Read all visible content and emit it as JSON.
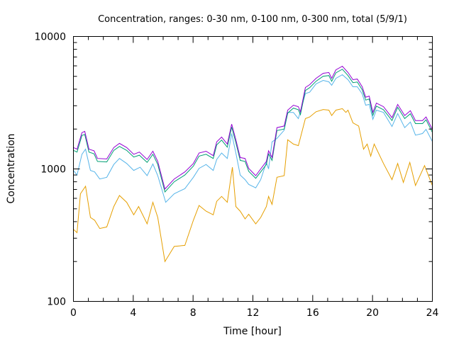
{
  "chart_data": {
    "type": "line",
    "title": "Concentration, ranges: 0-30 nm, 0-100 nm, 0-300 nm, total (5/9/1)",
    "xlabel": "Time [hour]",
    "ylabel": "Concentration",
    "xlim": [
      0,
      24
    ],
    "ylim": [
      100,
      10000
    ],
    "yscale": "log",
    "grid": false,
    "legend": "none",
    "xticks": [
      "0",
      "4",
      "8",
      "12",
      "16",
      "20",
      "24"
    ],
    "xtick_values": [
      0,
      4,
      8,
      12,
      16,
      20,
      24
    ],
    "yticks": [
      "100",
      "1000",
      "10000"
    ],
    "ytick_values": [
      100,
      1000,
      10000
    ],
    "series": [
      {
        "name": "total",
        "color": "#9400d3",
        "x": [
          0,
          0.24,
          0.57,
          0.76,
          1.04,
          1.38,
          1.61,
          2.23,
          2.7,
          3.08,
          3.56,
          4.03,
          4.41,
          4.93,
          5.31,
          5.64,
          6.12,
          6.74,
          7.45,
          8.02,
          8.4,
          8.87,
          9.35,
          9.58,
          9.91,
          10.29,
          10.58,
          10.86,
          11.15,
          11.48,
          11.72,
          12.19,
          12.52,
          12.9,
          13.05,
          13.28,
          13.61,
          14.09,
          14.33,
          14.71,
          15.04,
          15.18,
          15.51,
          15.8,
          16.22,
          16.7,
          17.08,
          17.27,
          17.55,
          17.98,
          18.36,
          18.69,
          18.98,
          19.31,
          19.54,
          19.78,
          20.02,
          20.26,
          20.73,
          21.3,
          21.68,
          22.15,
          22.53,
          22.87,
          23.34,
          23.58,
          24
        ],
        "values": [
          1450,
          1410,
          1880,
          1920,
          1410,
          1370,
          1200,
          1190,
          1450,
          1560,
          1450,
          1290,
          1340,
          1180,
          1360,
          1140,
          705,
          840,
          950,
          1100,
          1320,
          1360,
          1260,
          1600,
          1740,
          1540,
          2180,
          1660,
          1220,
          1200,
          1010,
          890,
          1000,
          1140,
          1370,
          1220,
          2050,
          2110,
          2780,
          3030,
          2950,
          2700,
          4120,
          4330,
          4830,
          5270,
          5340,
          4830,
          5600,
          5960,
          5340,
          4720,
          4770,
          4170,
          3480,
          3550,
          2670,
          3140,
          2950,
          2440,
          3070,
          2530,
          2750,
          2320,
          2320,
          2470,
          1990
        ]
      },
      {
        "name": "0-300 nm",
        "color": "#009e73",
        "x": [
          0,
          0.24,
          0.57,
          0.76,
          1.04,
          1.38,
          1.61,
          2.23,
          2.7,
          3.08,
          3.56,
          4.03,
          4.41,
          4.93,
          5.31,
          5.64,
          6.12,
          6.74,
          7.45,
          8.02,
          8.4,
          8.87,
          9.35,
          9.58,
          9.91,
          10.29,
          10.58,
          10.86,
          11.15,
          11.48,
          11.72,
          12.19,
          12.52,
          12.9,
          13.05,
          13.28,
          13.61,
          14.09,
          14.33,
          14.71,
          15.04,
          15.18,
          15.51,
          15.8,
          16.22,
          16.7,
          17.08,
          17.27,
          17.55,
          17.98,
          18.36,
          18.69,
          18.98,
          19.31,
          19.54,
          19.78,
          20.02,
          20.26,
          20.73,
          21.3,
          21.68,
          22.15,
          22.53,
          22.87,
          23.34,
          23.58,
          24
        ],
        "values": [
          1380,
          1340,
          1790,
          1820,
          1340,
          1300,
          1140,
          1130,
          1380,
          1480,
          1380,
          1230,
          1270,
          1120,
          1290,
          1080,
          670,
          800,
          900,
          1050,
          1250,
          1290,
          1200,
          1520,
          1650,
          1460,
          2070,
          1580,
          1160,
          1140,
          960,
          850,
          950,
          1080,
          1300,
          1160,
          1950,
          2000,
          2640,
          2880,
          2800,
          2570,
          3910,
          4110,
          4590,
          5010,
          5070,
          4590,
          5320,
          5660,
          5070,
          4480,
          4530,
          3960,
          3310,
          3370,
          2540,
          2980,
          2800,
          2320,
          2920,
          2400,
          2610,
          2200,
          2200,
          2350,
          1890
        ]
      },
      {
        "name": "0-100 nm",
        "color": "#56b4e9",
        "x": [
          0,
          0.24,
          0.57,
          0.81,
          1.14,
          1.42,
          1.76,
          2.23,
          2.7,
          3.08,
          3.56,
          4.03,
          4.46,
          4.93,
          5.31,
          5.64,
          6.17,
          6.74,
          7.45,
          8.02,
          8.4,
          8.87,
          9.35,
          9.58,
          9.91,
          10.29,
          10.58,
          10.86,
          11.15,
          11.48,
          11.72,
          12.19,
          12.52,
          12.9,
          13.05,
          13.28,
          13.61,
          14.09,
          14.33,
          14.71,
          15.04,
          15.51,
          15.8,
          16.22,
          16.7,
          17.08,
          17.27,
          17.55,
          17.98,
          18.36,
          18.69,
          18.98,
          19.31,
          19.54,
          19.78,
          20.02,
          20.26,
          20.73,
          21.3,
          21.68,
          22.15,
          22.53,
          22.87,
          23.34,
          23.58,
          24
        ],
        "values": [
          975,
          900,
          1290,
          1410,
          975,
          950,
          840,
          865,
          1080,
          1200,
          1100,
          975,
          1030,
          890,
          1090,
          890,
          560,
          650,
          710,
          865,
          1010,
          1080,
          975,
          1180,
          1320,
          1200,
          1850,
          1320,
          900,
          830,
          765,
          720,
          830,
          1120,
          1000,
          1600,
          1700,
          1960,
          2670,
          2670,
          2400,
          3700,
          3800,
          4390,
          4660,
          4550,
          4280,
          4830,
          5140,
          4720,
          4170,
          4170,
          3690,
          3030,
          3070,
          2370,
          2780,
          2670,
          2090,
          2620,
          2050,
          2260,
          1800,
          1850,
          1990,
          1610
        ]
      },
      {
        "name": "0-30 nm",
        "color": "#e69f00",
        "x": [
          0,
          0.24,
          0.47,
          0.81,
          1.14,
          1.42,
          1.76,
          2.23,
          2.7,
          3.08,
          3.56,
          4.03,
          4.36,
          4.93,
          5.31,
          5.64,
          6.12,
          6.74,
          7.45,
          8.02,
          8.4,
          8.87,
          9.35,
          9.58,
          9.91,
          10.29,
          10.63,
          10.86,
          11.15,
          11.48,
          11.72,
          12.19,
          12.52,
          12.9,
          13.05,
          13.28,
          13.61,
          14.09,
          14.33,
          14.71,
          15.04,
          15.51,
          15.8,
          16.22,
          16.7,
          17.08,
          17.27,
          17.55,
          17.98,
          18.22,
          18.36,
          18.69,
          19.07,
          19.4,
          19.64,
          19.88,
          20.11,
          20.73,
          21.3,
          21.68,
          22.06,
          22.49,
          22.87,
          23.48,
          24
        ],
        "values": [
          350,
          330,
          650,
          740,
          430,
          410,
          355,
          365,
          520,
          630,
          560,
          450,
          520,
          385,
          560,
          430,
          200,
          260,
          265,
          410,
          530,
          480,
          450,
          570,
          620,
          560,
          1030,
          520,
          480,
          420,
          455,
          385,
          430,
          520,
          620,
          540,
          865,
          890,
          1660,
          1540,
          1500,
          2400,
          2470,
          2700,
          2810,
          2780,
          2530,
          2780,
          2850,
          2670,
          2780,
          2230,
          2110,
          1410,
          1540,
          1250,
          1540,
          1100,
          830,
          1100,
          790,
          1120,
          750,
          1060,
          750
        ]
      }
    ]
  }
}
